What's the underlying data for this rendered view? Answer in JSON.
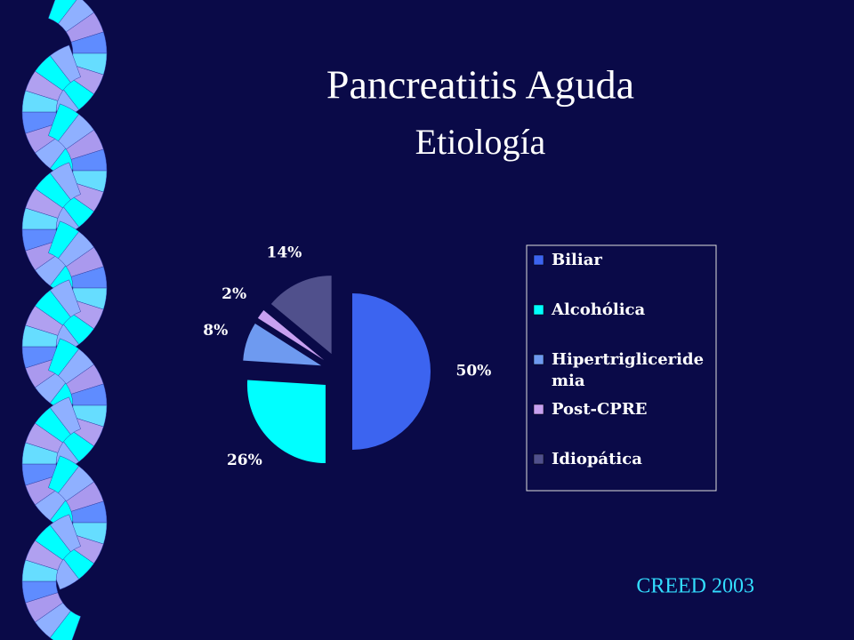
{
  "title": "Pancreatitis Aguda",
  "subtitle": "Etiología",
  "footer": "CREED 2003",
  "chart_data": {
    "type": "pie",
    "categories": [
      "Biliar",
      "Alcohólica",
      "Hipertrigliceridemia",
      "Post-CPRE",
      "Idiopática"
    ],
    "values": [
      50,
      26,
      8,
      2,
      14
    ],
    "value_labels": [
      "50%",
      "26%",
      "8%",
      "2%",
      "14%"
    ],
    "colors": [
      "#3c64f0",
      "#00ffff",
      "#6e9af0",
      "#c8a0f0",
      "#50508c"
    ],
    "legend": "right"
  }
}
